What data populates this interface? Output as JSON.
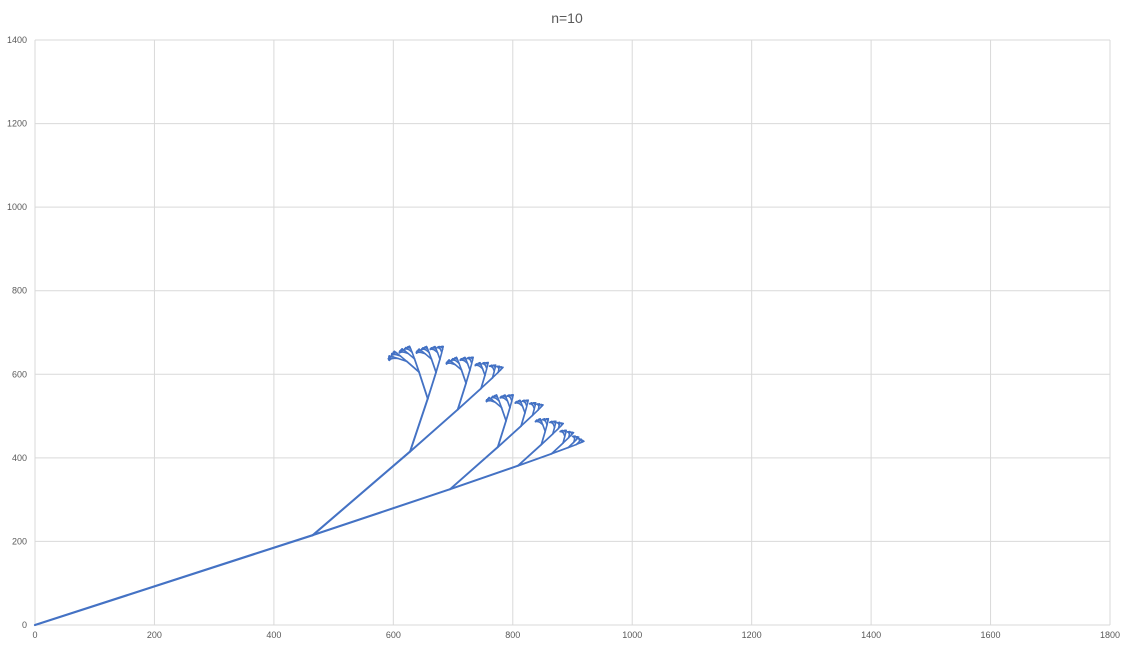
{
  "chart_data": {
    "type": "line",
    "title": "n=10",
    "xlabel": "",
    "ylabel": "",
    "xlim": [
      0,
      1800
    ],
    "ylim": [
      0,
      1400
    ],
    "x_ticks": [
      "0",
      "200",
      "400",
      "600",
      "800",
      "1000",
      "1200",
      "1400",
      "1600",
      "1800"
    ],
    "y_ticks": [
      "0",
      "200",
      "400",
      "600",
      "800",
      "1000",
      "1200",
      "1400"
    ],
    "grid": true,
    "legend": "none",
    "series": [
      {
        "color": "#4472c4",
        "fractal_depth": 10,
        "trunk": {
          "x": [
            0,
            465
          ],
          "y": [
            0,
            215
          ]
        },
        "branches": [
          {
            "x": [
              465,
              695
            ],
            "y": [
              215,
              325
            ]
          },
          {
            "x": [
              465,
              628
            ],
            "y": [
              215,
              415
            ]
          }
        ]
      }
    ]
  }
}
